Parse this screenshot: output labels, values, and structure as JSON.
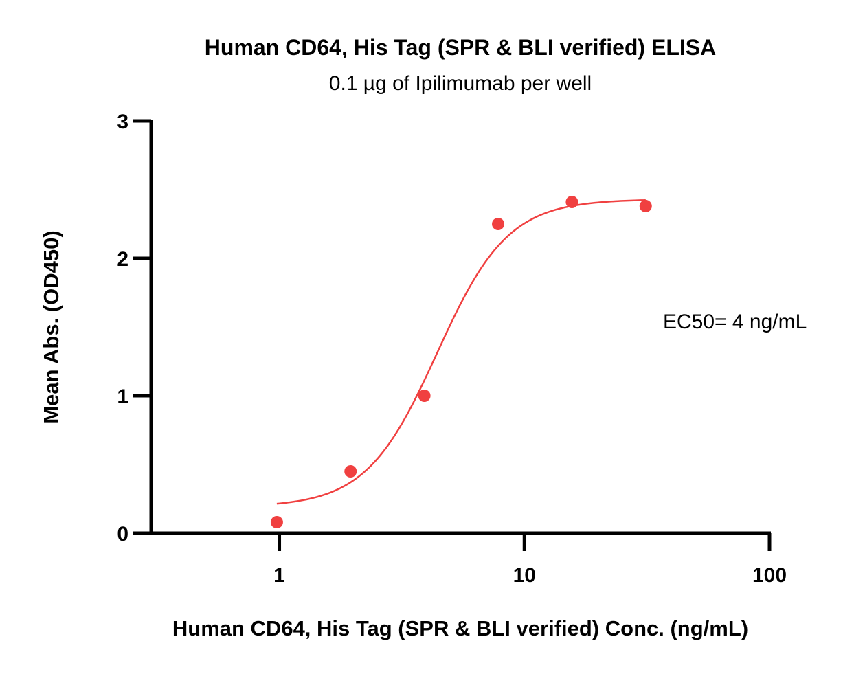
{
  "chart_data": {
    "type": "scatter",
    "title": "Human CD64, His Tag (SPR & BLI verified) ELISA",
    "subtitle": "0.1 µg of Ipilimumab per well",
    "xlabel": "Human CD64, His Tag (SPR & BLI verified) Conc. (ng/mL)",
    "ylabel": "Mean Abs. (OD450)",
    "x_scale": "log",
    "xlim": [
      0.3,
      100
    ],
    "ylim": [
      0,
      3
    ],
    "x_ticks": [
      1,
      10,
      100
    ],
    "x_tick_labels": [
      "1",
      "10",
      "100"
    ],
    "y_ticks": [
      0,
      1,
      2,
      3
    ],
    "y_tick_labels": [
      "0",
      "1",
      "2",
      "3"
    ],
    "grid": false,
    "legend": "none",
    "color": "#f04040",
    "points": {
      "x": [
        0.977,
        1.953,
        3.906,
        7.813,
        15.625,
        31.25
      ],
      "y": [
        0.08,
        0.45,
        1.0,
        2.25,
        2.41,
        2.38
      ]
    },
    "fit_curve": {
      "model": "4PL",
      "bottom": 0.19,
      "top": 2.43,
      "ec50": 4.4,
      "hill": 3.0,
      "x_range": [
        0.977,
        31.25
      ]
    },
    "annotation": "EC50= 4 ng/mL"
  }
}
